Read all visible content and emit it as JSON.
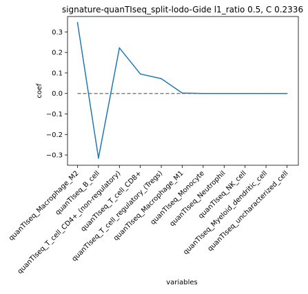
{
  "chart_data": {
    "type": "line",
    "title": "signature-quanTIseq_split-lodo-Gide l1_ratio 0.5, C 0.2336",
    "xlabel": "variables",
    "ylabel": "coef",
    "categories": [
      "quanTIseq_Macrophage_M2",
      "quanTIseq_B_cell",
      "quanTIseq_T_cell_CD4+_(non-regulatory)",
      "quanTIseq_T_cell_CD8+",
      "quanTIseq_T_cell_regulatory_(Tregs)",
      "quanTIseq_Macrophage_M1",
      "quanTIseq_Monocyte",
      "quanTIseq_Neutrophil",
      "quanTIseq_NK_cell",
      "quanTIseq_Myeloid_dendritic_cell",
      "quanTIseq_uncharacterized_cell"
    ],
    "series": [
      {
        "values": [
          0.345,
          -0.315,
          0.222,
          0.095,
          0.072,
          0.002,
          0.0,
          0.0,
          0.0,
          0.0,
          0.0
        ],
        "color": "#1f77b4"
      }
    ],
    "reference_line": {
      "y": 0,
      "style": "dashed",
      "color": "#808080"
    },
    "ylim": [
      -0.35,
      0.375
    ],
    "yticks": [
      -0.3,
      -0.2,
      -0.1,
      0.0,
      0.1,
      0.2,
      0.3
    ],
    "ytick_labels": [
      "−0.3",
      "−0.2",
      "−0.1",
      "0.0",
      "0.1",
      "0.2",
      "0.3"
    ],
    "grid": false,
    "legend": "none"
  }
}
